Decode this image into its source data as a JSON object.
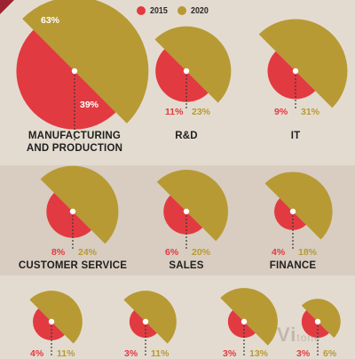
{
  "legend": [
    {
      "label": "2015",
      "color": "#e23a41"
    },
    {
      "label": "2020",
      "color": "#b79a34"
    }
  ],
  "colors": {
    "v2015": "#e23a41",
    "v2020": "#b79a34",
    "background": "#e4dbd0",
    "band": "#d8cdc0"
  },
  "watermark": {
    "main": "Vi",
    "tail": "tone"
  },
  "chart_data": {
    "type": "pie",
    "unit": "%",
    "series": [
      "2015",
      "2020"
    ],
    "categories": [
      {
        "name": "MANUFACTURING\nAND PRODUCTION",
        "v2015": 39,
        "v2020": 63,
        "label_2015": "39%",
        "label_2020": "63%"
      },
      {
        "name": "R&D",
        "v2015": 11,
        "v2020": 23,
        "label_2015": "11%",
        "label_2020": "23%"
      },
      {
        "name": "IT",
        "v2015": 9,
        "v2020": 31,
        "label_2015": "9%",
        "label_2020": "31%"
      },
      {
        "name": "CUSTOMER SERVICE",
        "v2015": 8,
        "v2020": 24,
        "label_2015": "8%",
        "label_2020": "24%"
      },
      {
        "name": "SALES",
        "v2015": 6,
        "v2020": 20,
        "label_2015": "6%",
        "label_2020": "20%"
      },
      {
        "name": "FINANCE",
        "v2015": 4,
        "v2020": 18,
        "label_2015": "4%",
        "label_2020": "18%"
      },
      {
        "name": "",
        "v2015": 4,
        "v2020": 11,
        "label_2015": "4%",
        "label_2020": "11%"
      },
      {
        "name": "",
        "v2015": 3,
        "v2020": 11,
        "label_2015": "3%",
        "label_2020": "11%"
      },
      {
        "name": "",
        "v2015": 3,
        "v2020": 13,
        "label_2015": "3%",
        "label_2020": "13%"
      },
      {
        "name": "",
        "v2015": 3,
        "v2020": 6,
        "label_2015": "3%",
        "label_2020": "6%"
      }
    ]
  }
}
